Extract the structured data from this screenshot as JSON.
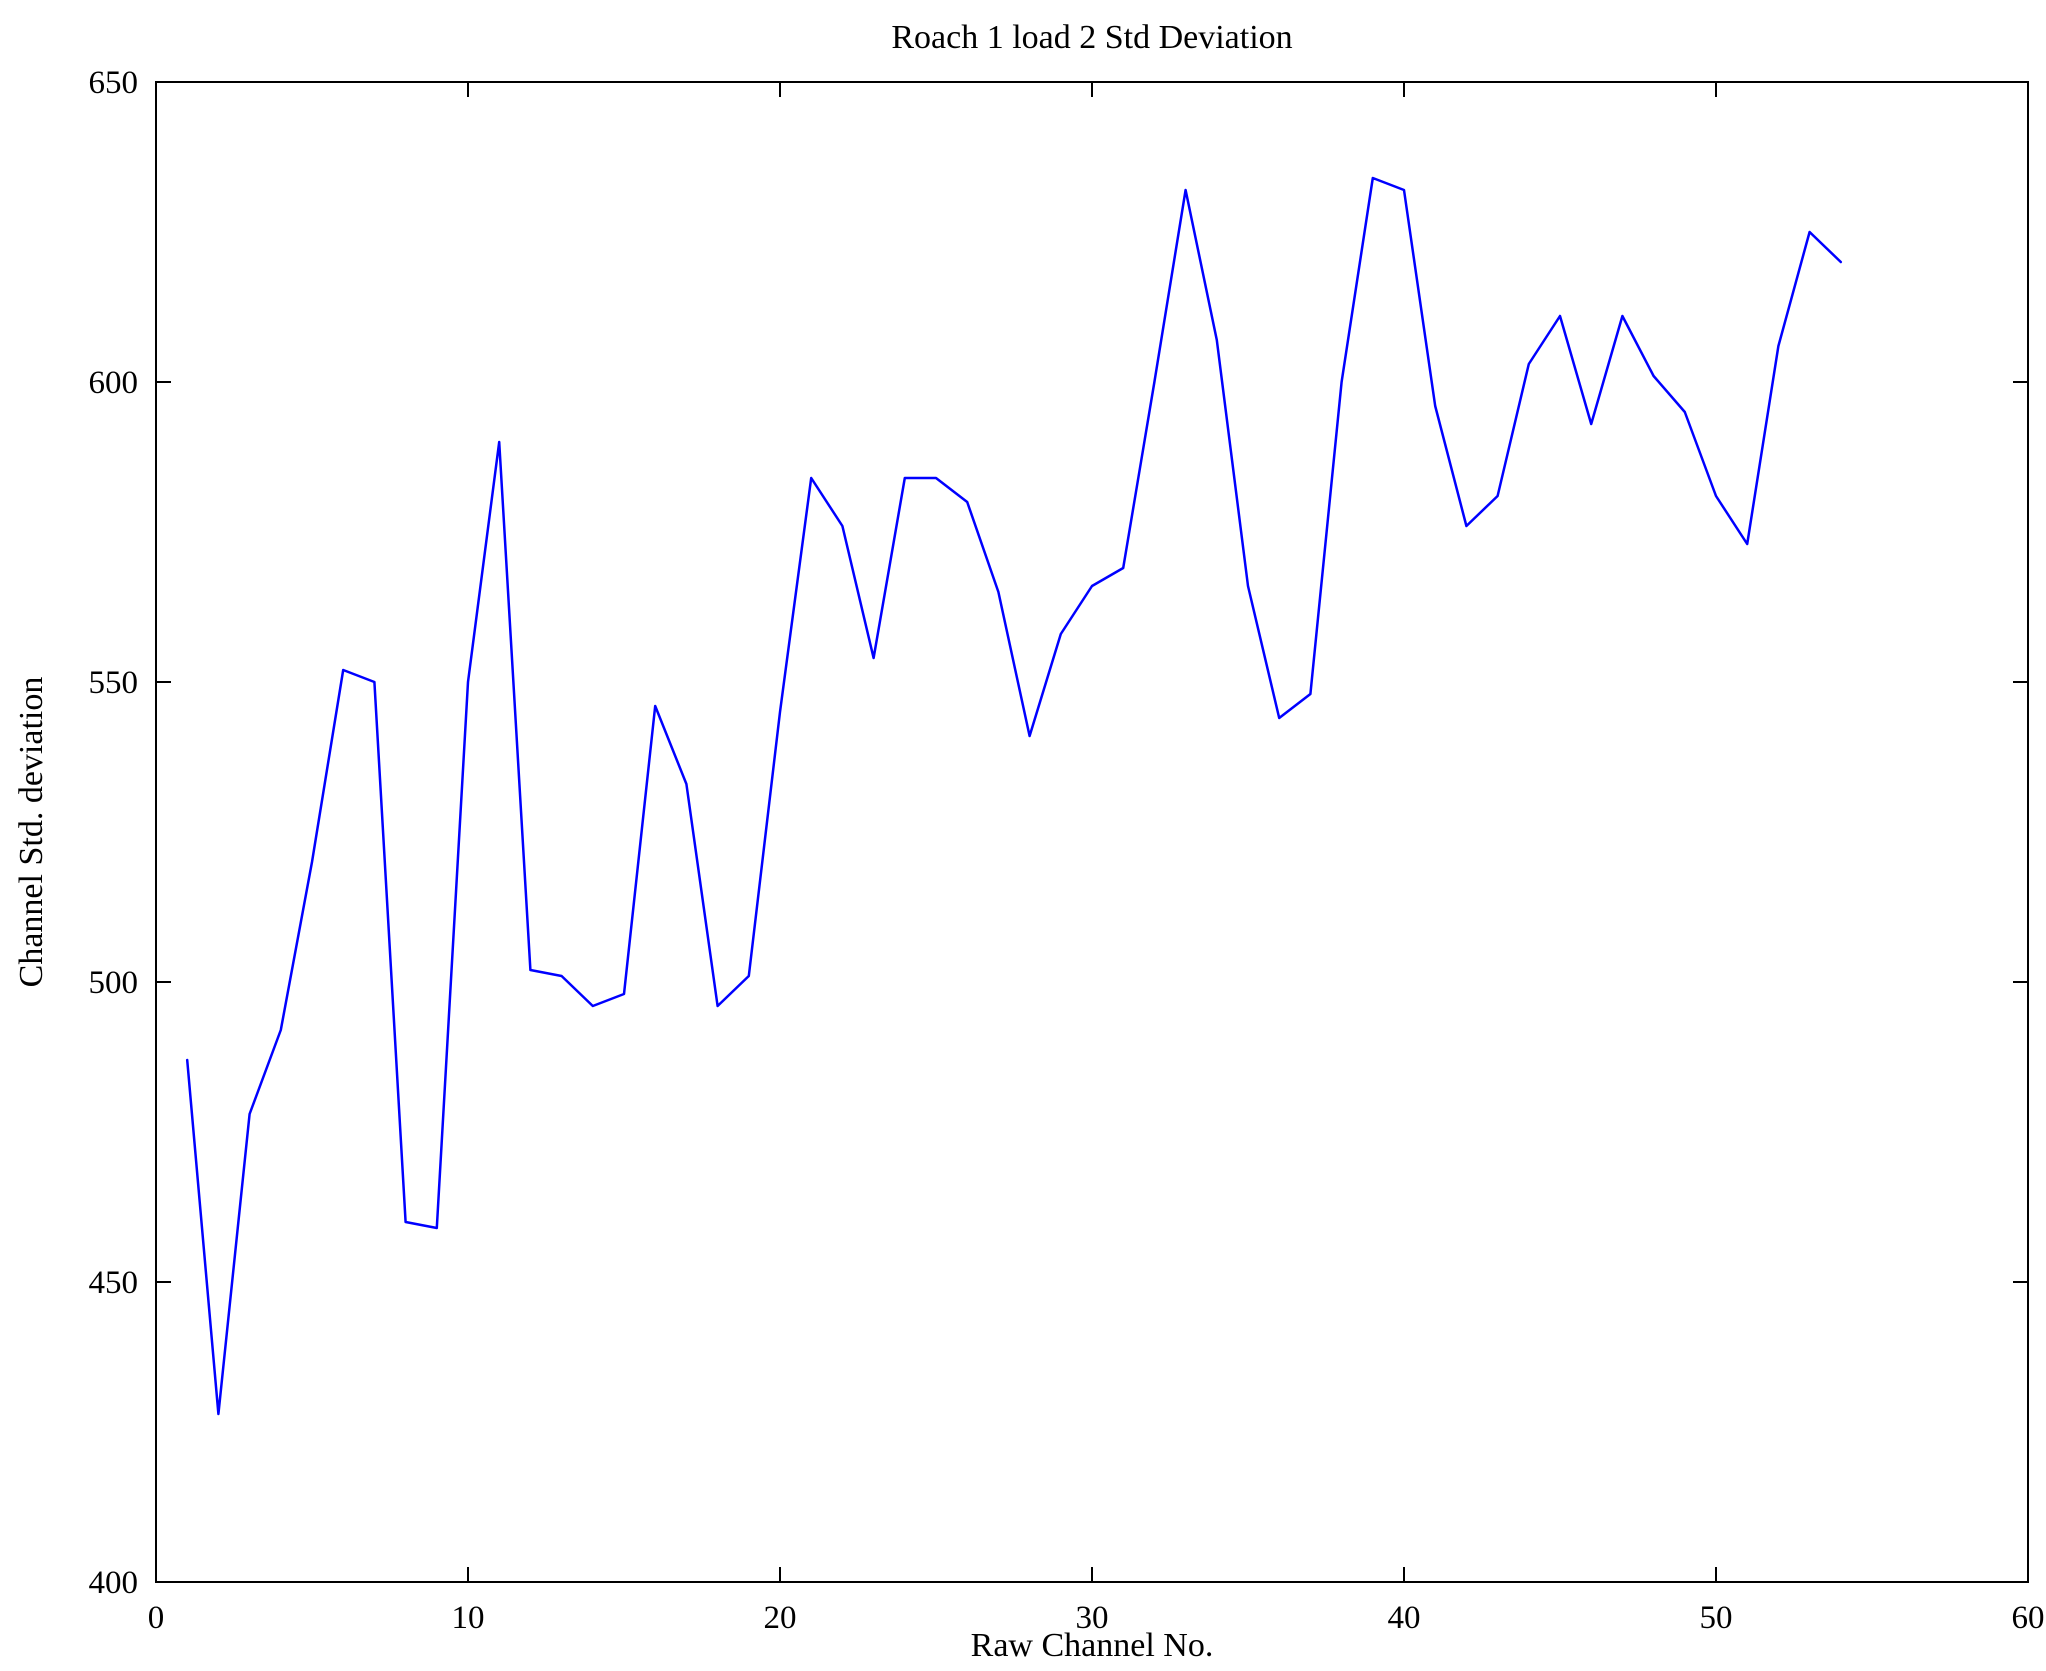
{
  "chart_data": {
    "type": "line",
    "title": "Roach 1 load 2 Std Deviation",
    "xlabel": "Raw Channel No.",
    "ylabel": "Channel Std. deviation",
    "xlim": [
      0,
      60
    ],
    "ylim": [
      400,
      650
    ],
    "x_ticks": [
      0,
      10,
      20,
      30,
      40,
      50,
      60
    ],
    "y_ticks": [
      400,
      450,
      500,
      550,
      600,
      650
    ],
    "grid": false,
    "legend": "none",
    "line_color": "#0000ff",
    "x": [
      1,
      2,
      3,
      4,
      5,
      6,
      7,
      8,
      9,
      10,
      11,
      12,
      13,
      14,
      15,
      16,
      17,
      18,
      19,
      20,
      21,
      22,
      23,
      24,
      25,
      26,
      27,
      28,
      29,
      30,
      31,
      32,
      33,
      34,
      35,
      36,
      37,
      38,
      39,
      40,
      41,
      42,
      43,
      44,
      45,
      46,
      47,
      48,
      49,
      50,
      51,
      52,
      53,
      54
    ],
    "y": [
      487,
      428,
      478,
      492,
      520,
      552,
      550,
      460,
      459,
      550,
      590,
      502,
      501,
      496,
      498,
      546,
      533,
      496,
      501,
      545,
      584,
      576,
      554,
      584,
      584,
      580,
      565,
      541,
      558,
      566,
      569,
      600,
      632,
      607,
      566,
      544,
      548,
      600,
      634,
      632,
      596,
      576,
      581,
      603,
      611,
      593,
      611,
      601,
      595,
      581,
      573,
      606,
      625,
      620
    ]
  }
}
